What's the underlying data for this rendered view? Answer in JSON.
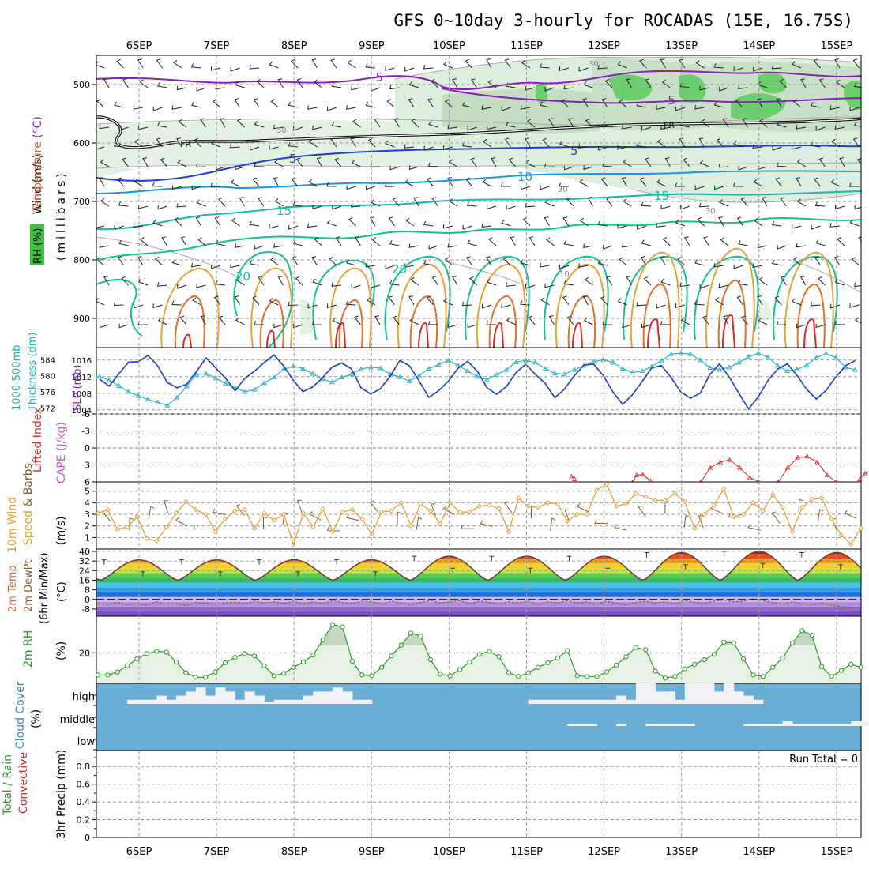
{
  "title": "GFS 0~10day 3-hourly for ROCADAS (15E, 16.75S)",
  "dates": [
    "6SEP",
    "7SEP",
    "8SEP",
    "9SEP",
    "10SEP",
    "11SEP",
    "12SEP",
    "13SEP",
    "14SEP",
    "15SEP"
  ],
  "run_total": "Run Total = 0",
  "colors": {
    "purple": "#8a1fb8",
    "blue": "#1e3fd0",
    "lightblue": "#1b95de",
    "cyan": "#19b5b2",
    "seagreen": "#12c38f",
    "orange": "#e6a33a",
    "darkorange": "#e0702a",
    "red": "#d62a2a",
    "slp": "#1a3fc8",
    "thick": "#2ab5c4",
    "wind": "#e69a2e",
    "rh2m": "#2a9a2a",
    "cloud": "#6aaed6",
    "gridline": "#999999"
  },
  "chart_data": [
    {
      "type": "contour",
      "panel": "upper-air",
      "ylabel_parts": [
        "Wind",
        " (m/s)",
        "Temperature",
        " (°C)",
        "RH (%)",
        "(millibars)"
      ],
      "y_ticks": [
        500,
        600,
        700,
        800,
        900
      ],
      "ylim": [
        450,
        950
      ],
      "contour_labels": [
        "-5",
        "-5",
        "FR",
        "FR",
        "5",
        "5",
        "10",
        "15",
        "15",
        "20",
        "20",
        "30",
        "30",
        "30",
        "30",
        "10"
      ]
    },
    {
      "type": "line",
      "panel": "slp-thickness",
      "ylabel_left": [
        "1000-500mb",
        "Thickness (dm)"
      ],
      "ylabel_right": "SLP (mb)",
      "thickness_ticks": [
        584,
        580,
        576,
        572
      ],
      "slp_ticks": [
        1016,
        1012,
        1008,
        1004
      ],
      "thickness_lim": [
        570.5,
        587
      ],
      "slp_lim": [
        1003,
        1019
      ],
      "x": [
        0.0,
        0.125,
        0.25,
        0.375,
        0.5,
        0.625,
        0.75,
        0.875,
        1.0,
        1.125,
        1.25,
        1.375,
        1.5,
        1.625,
        1.75,
        1.875,
        2.0,
        2.125,
        2.25,
        2.375,
        2.5,
        2.625,
        2.75,
        2.875,
        3.0,
        3.125,
        3.25,
        3.375,
        3.5,
        3.625,
        3.75,
        3.875,
        4.0,
        4.125,
        4.25,
        4.375,
        4.5,
        4.625,
        4.75,
        4.875,
        5.0,
        5.125,
        5.25,
        5.375,
        5.5,
        5.625,
        5.75,
        5.875,
        6.0,
        6.125,
        6.25,
        6.375,
        6.5,
        6.625,
        6.75,
        6.875,
        7.0,
        7.125,
        7.25,
        7.375,
        7.5,
        7.625,
        7.75,
        7.875,
        8.0,
        8.125,
        8.25,
        8.375,
        8.5,
        8.625,
        8.75,
        8.875,
        9.0,
        9.125,
        9.25,
        9.375,
        9.5,
        9.625,
        9.75
      ],
      "series": [
        {
          "name": "SLP",
          "values": [
            1011.4,
            1009.7,
            1012.7,
            1015.5,
            1015.6,
            1017.1,
            1014.6,
            1010.6,
            1009.3,
            1010.2,
            1013.2,
            1016.5,
            1014.1,
            1011.6,
            1008.6,
            1011.6,
            1013.3,
            1015.4,
            1017.2,
            1014.6,
            1011.1,
            1008.4,
            1009.5,
            1011.7,
            1014.3,
            1015.3,
            1013.9,
            1009.3,
            1007.8,
            1009.1,
            1012.1,
            1015.9,
            1014.6,
            1010.9,
            1007.0,
            1008.6,
            1010.9,
            1014.0,
            1015.7,
            1013.3,
            1009.3,
            1007.7,
            1009.6,
            1013.0,
            1015.0,
            1012.5,
            1010.4,
            1006.9,
            1009.0,
            1012.2,
            1014.8,
            1015.0,
            1012.3,
            1008.3,
            1005.3,
            1007.6,
            1010.8,
            1014.1,
            1014.7,
            1011.8,
            1008.3,
            1006.8,
            1008.0,
            1012.5,
            1015.1,
            1011.9,
            1008.0,
            1004.2,
            1007.1,
            1011.1,
            1013.8,
            1015.1,
            1012.3,
            1008.9,
            1006.6,
            1008.7,
            1011.9,
            1014.6,
            1015.9
          ]
        },
        {
          "name": "Thickness",
          "values": [
            579.8,
            578.9,
            577.5,
            576.0,
            575.0,
            574.1,
            573.4,
            572.6,
            574.6,
            577.4,
            580.3,
            580.5,
            579.4,
            578.1,
            577.0,
            576.0,
            576.6,
            578.2,
            579.6,
            581.6,
            582.4,
            581.8,
            580.5,
            579.2,
            578.4,
            579.6,
            580.4,
            581.7,
            582.1,
            581.9,
            580.4,
            579.7,
            578.7,
            580.1,
            581.8,
            582.8,
            583.8,
            582.6,
            581.2,
            579.8,
            579.1,
            580.3,
            581.5,
            583.4,
            583.8,
            583.3,
            581.8,
            580.6,
            580.4,
            581.5,
            582.5,
            583.5,
            584.0,
            583.3,
            581.8,
            580.8,
            581.2,
            582.3,
            583.8,
            585.4,
            585.6,
            585.4,
            583.9,
            582.0,
            581.5,
            582.1,
            583.3,
            584.7,
            585.6,
            584.6,
            582.5,
            581.2,
            581.6,
            582.6,
            584.5,
            585.5,
            584.5,
            582.1,
            581.5
          ]
        }
      ]
    },
    {
      "type": "line",
      "panel": "cape-lifted-index",
      "ylabel_left": "Lifted Index",
      "ylabel_right": "CAPE (J/kg)",
      "li_ticks": [
        "-6",
        "-3",
        "0",
        "3",
        "6"
      ],
      "ylim": [
        -6,
        6
      ],
      "li_segments": [
        {
          "x": [
            5.58,
            5.62
          ],
          "y": [
            5.0,
            5.5
          ]
        },
        {
          "x": [
            6.37,
            6.42,
            6.5,
            6.6
          ],
          "y": [
            6.0,
            4.8,
            4.7,
            5.8
          ]
        },
        {
          "x": [
            7.25,
            7.37,
            7.5,
            7.62,
            7.75,
            7.88,
            8.0
          ],
          "y": [
            6.0,
            3.5,
            2.5,
            2.1,
            3.5,
            5.2,
            6.0
          ]
        },
        {
          "x": [
            8.25,
            8.37,
            8.5,
            8.62,
            8.75,
            8.88,
            9.0
          ],
          "y": [
            6.0,
            3.5,
            1.7,
            1.5,
            2.5,
            4.8,
            6.0
          ]
        },
        {
          "x": [
            9.3,
            9.37,
            9.45,
            9.52
          ],
          "y": [
            5.5,
            4.5,
            4.0,
            5.5
          ]
        }
      ]
    },
    {
      "type": "line",
      "panel": "10m-wind",
      "ylabel_parts": [
        "10m Wind",
        "Speed",
        " & Barbs",
        "(m/s)"
      ],
      "y_ticks": [
        1,
        2,
        3,
        4,
        5
      ],
      "ylim": [
        0,
        5.8
      ],
      "values": [
        3.1,
        3.4,
        1.7,
        1.9,
        2.8,
        0.9,
        0.7,
        1.9,
        3.1,
        4.1,
        3.4,
        3.0,
        1.5,
        2.6,
        3.3,
        3.4,
        1.8,
        3.1,
        2.5,
        3.0,
        0.4,
        3.1,
        1.9,
        3.5,
        1.5,
        3.2,
        3.4,
        2.6,
        1.3,
        3.2,
        3.3,
        4.0,
        2.0,
        3.9,
        3.3,
        2.2,
        4.0,
        3.2,
        3.2,
        3.7,
        3.8,
        3.5,
        1.5,
        4.4,
        3.7,
        3.6,
        4.0,
        3.9,
        2.4,
        3.0,
        3.0,
        5.1,
        5.6,
        3.7,
        3.9,
        4.8,
        4.5,
        4.2,
        4.2,
        4.8,
        4.1,
        1.8,
        3.0,
        3.8,
        5.2,
        2.8,
        3.0,
        4.0,
        3.3,
        4.7,
        3.6,
        1.5,
        3.6,
        4.3,
        4.4,
        2.6,
        1.2,
        0.4,
        1.8
      ]
    },
    {
      "type": "area",
      "panel": "2m-temp",
      "ylabel_parts": [
        "2m Temp",
        "2m DewPt",
        "(6hr Min/Max)",
        "(°C)"
      ],
      "y_ticks": [
        "40",
        "32",
        "24",
        "16",
        "8",
        "0",
        "-8"
      ],
      "ylim": [
        -14,
        42
      ],
      "temp_min": [
        16,
        16,
        16,
        16,
        16,
        16,
        16,
        16,
        16,
        16
      ],
      "temp_max": [
        33,
        33,
        33,
        33,
        36,
        36,
        36,
        39,
        40,
        39
      ],
      "dewpoint": [
        -3.5,
        -4.0,
        -2.5,
        -4.5,
        -3.5,
        -5.0,
        -2.0,
        -4.0,
        -3.5,
        -5.0,
        -2.5,
        -3.0,
        -4.0,
        -3.0,
        -2.5,
        -3.5,
        -1.5,
        -3.0,
        -2.0,
        -3.5,
        -1.5,
        -4.0,
        -2.0,
        -3.5,
        -1.0,
        -2.5,
        -3.5,
        -1.5,
        -2.0,
        -4.0,
        -1.5,
        -3.0,
        -4.5,
        -2.5,
        -1.0,
        -3.0,
        -2.0,
        -1.0,
        -3.5,
        -1.5,
        -2.5,
        -4.0,
        -2.0,
        -3.0,
        -1.5,
        -4.5,
        -2.0,
        -3.0,
        -1.0,
        -3.0,
        -2.0,
        -4.0,
        -1.5,
        -3.0,
        -4.5,
        -2.5,
        -1.5,
        -3.0,
        -2.0,
        -3.5,
        -1.0,
        -2.5,
        -3.0,
        -1.5,
        -0.5,
        -2.0,
        -1.5,
        0.5,
        -1.0,
        -2.5,
        -4.0,
        -2.0,
        -3.5,
        -4.5,
        -3.0,
        -5.0,
        -6.0,
        -6.5,
        -7.0
      ]
    },
    {
      "type": "area",
      "panel": "2m-rh",
      "ylabel_parts": [
        "2m RH",
        "(%)"
      ],
      "y_ticks": [
        20
      ],
      "ylim": [
        0,
        44
      ],
      "values": [
        5.5,
        5.5,
        7.5,
        11.5,
        16.0,
        19.5,
        21.0,
        20.5,
        14.0,
        7.0,
        4.0,
        4.0,
        7.5,
        13.5,
        17.0,
        19.5,
        18.0,
        11.5,
        5.0,
        6.5,
        10.5,
        14.0,
        18.5,
        28.5,
        38.5,
        37.0,
        14.5,
        5.5,
        5.0,
        10.5,
        18.0,
        25.0,
        33.0,
        31.0,
        15.5,
        6.0,
        5.0,
        9.0,
        14.0,
        19.0,
        21.0,
        17.5,
        7.0,
        4.5,
        7.0,
        10.5,
        13.5,
        16.5,
        21.5,
        5.0,
        4.5,
        4.5,
        7.5,
        12.0,
        17.5,
        23.5,
        22.0,
        8.0,
        3.5,
        4.5,
        9.5,
        12.5,
        15.5,
        19.0,
        27.0,
        26.5,
        16.0,
        5.5,
        4.5,
        10.5,
        16.5,
        26.5,
        34.5,
        31.5,
        11.0,
        4.5,
        8.5,
        12.5,
        10.5
      ]
    },
    {
      "type": "heatmap",
      "panel": "cloud-cover",
      "ylabel_parts": [
        "Cloud Cover",
        "(%)"
      ],
      "levels": [
        "high",
        "middle",
        "low"
      ],
      "high": [
        0,
        0,
        0,
        0.2,
        0.2,
        0.2,
        0.4,
        0.2,
        0.4,
        0.6,
        0.8,
        0.4,
        0.8,
        0.6,
        0.2,
        0.6,
        0.4,
        0.1,
        0.2,
        0.2,
        0.2,
        0.4,
        0.6,
        0.6,
        0.8,
        0.6,
        0.2,
        0.2,
        0,
        0,
        0,
        0,
        0,
        0,
        0,
        0,
        0,
        0,
        0,
        0,
        0,
        0,
        0,
        0,
        0.2,
        0.2,
        0.2,
        0.2,
        0.2,
        0.2,
        0.2,
        0.2,
        0.2,
        0.4,
        0.2,
        1.0,
        1.0,
        0.6,
        0.6,
        0.2,
        1.0,
        1.0,
        1.0,
        0.6,
        1.0,
        0.6,
        0.4,
        0.2,
        0,
        0,
        0,
        0,
        0,
        0,
        0,
        0,
        0,
        0,
        0
      ],
      "middle": [
        0,
        0,
        0,
        0,
        0,
        0,
        0,
        0,
        0,
        0,
        0,
        0,
        0,
        0,
        0,
        0,
        0,
        0,
        0,
        0,
        0,
        0,
        0,
        0,
        0,
        0,
        0,
        0,
        0,
        0,
        0,
        0,
        0,
        0,
        0,
        0,
        0,
        0,
        0,
        0,
        0,
        0,
        0,
        0,
        0,
        0,
        0,
        0,
        0.2,
        0.2,
        0.2,
        0,
        0,
        0.2,
        0,
        0,
        0.2,
        0.2,
        0.2,
        0.2,
        0.2,
        0,
        0,
        0,
        0,
        0,
        0.2,
        0.2,
        0.2,
        0.2,
        0.2,
        0.2,
        0.2,
        0.2,
        0.2,
        0.2,
        0.2,
        0.2,
        0.2
      ],
      "middle_left": [
        0,
        0,
        0,
        0,
        0,
        0,
        0,
        0,
        0,
        0,
        0,
        0,
        0,
        0,
        0,
        0,
        0,
        0,
        0,
        0,
        0,
        0,
        0,
        0,
        0,
        0,
        0,
        0,
        0,
        0,
        0,
        0,
        0,
        0,
        0,
        0,
        0,
        0,
        0,
        0,
        0,
        0,
        0,
        0,
        0,
        0,
        0,
        0,
        0,
        0,
        0,
        0,
        0,
        0,
        0,
        0,
        0,
        0,
        0,
        0,
        0,
        0,
        0,
        0,
        0,
        0,
        0,
        0,
        0.2,
        0,
        0.5,
        0,
        0,
        0,
        0,
        0,
        0,
        0.5,
        0.5
      ],
      "low": [
        0,
        0,
        0,
        0,
        0,
        0,
        0,
        0,
        0,
        0,
        0,
        0,
        0,
        0,
        0,
        0,
        0,
        0,
        0,
        0,
        0,
        0,
        0,
        0,
        0,
        0,
        0,
        0,
        0,
        0,
        0,
        0,
        0,
        0,
        0,
        0,
        0,
        0,
        0,
        0,
        0,
        0,
        0,
        0,
        0,
        0,
        0,
        0,
        0,
        0,
        0,
        0,
        0,
        0,
        0,
        0,
        0,
        0,
        0,
        0,
        0,
        0,
        0,
        0,
        0,
        0,
        0,
        0,
        0,
        0,
        0,
        0,
        0,
        0,
        0,
        0,
        0,
        0,
        0
      ]
    },
    {
      "type": "bar",
      "panel": "precip",
      "ylabel_parts": [
        "Total / Rain",
        "Convective",
        "3hr Precip (mm)"
      ],
      "y_ticks": [
        "0.8",
        "0.6",
        "0.4",
        "0.2",
        "0"
      ],
      "ylim": [
        0,
        0.98
      ],
      "values": []
    }
  ]
}
